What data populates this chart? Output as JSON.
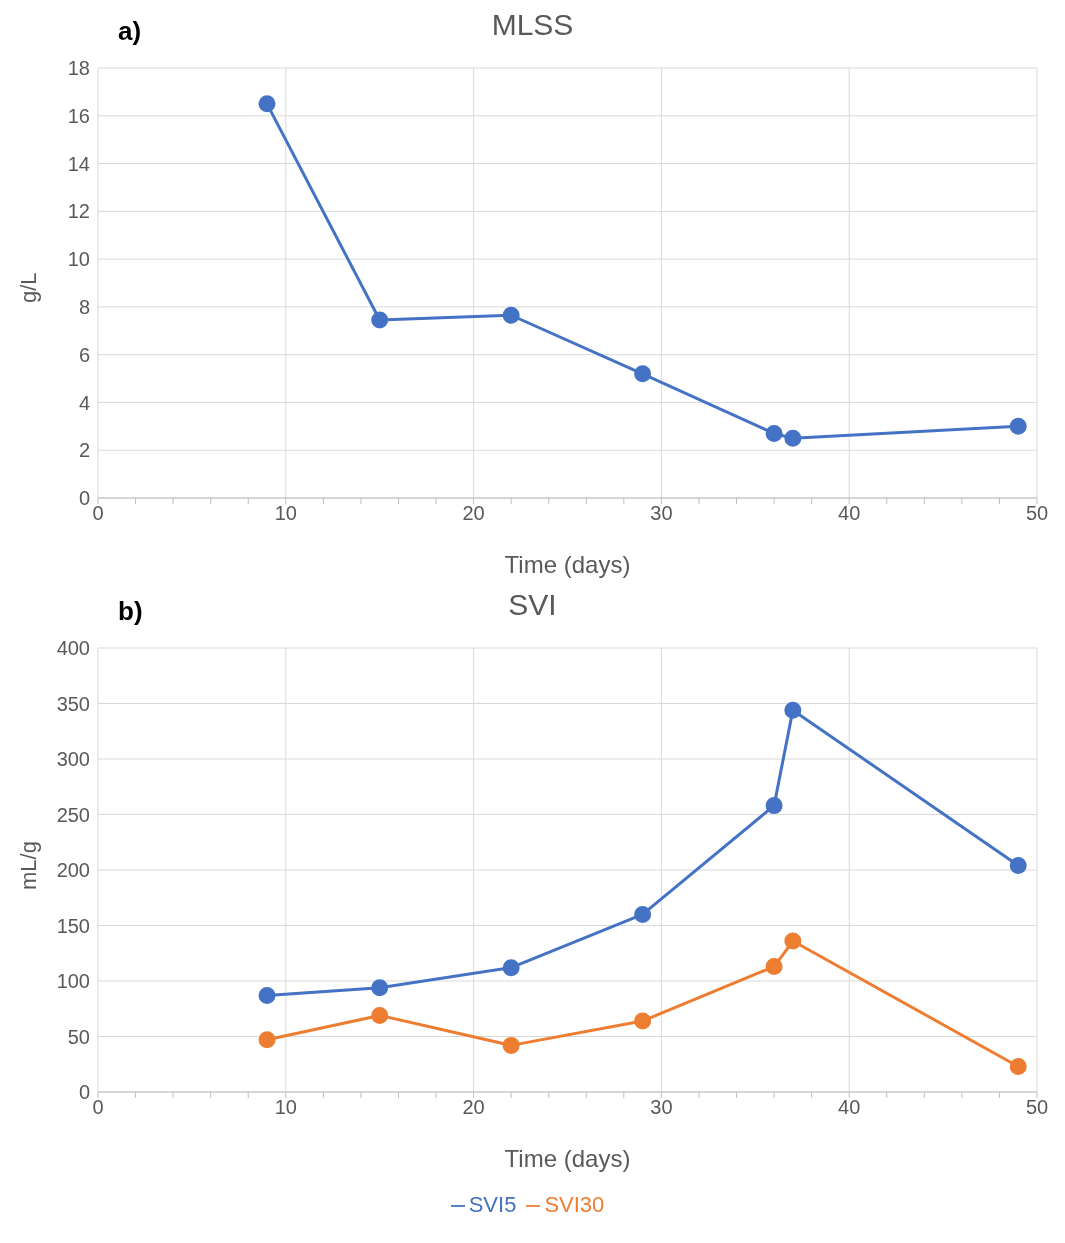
{
  "chart_data": [
    {
      "type": "line",
      "title": "MLSS",
      "xlabel": "Time (days)",
      "ylabel": "g/L",
      "annotations": [
        "a)"
      ],
      "xlim": [
        0,
        50
      ],
      "xticks": [
        0,
        {
          "value": 2,
          "label": null
        },
        {
          "value": 4,
          "label": null
        },
        {
          "value": 6,
          "label": null
        },
        {
          "value": 8,
          "label": null
        },
        10,
        {
          "value": 12,
          "label": null
        },
        {
          "value": 14,
          "label": null
        },
        {
          "value": 16,
          "label": null
        },
        {
          "value": 18,
          "label": null
        },
        20,
        {
          "value": 22,
          "label": null
        },
        {
          "value": 24,
          "label": null
        },
        {
          "value": 26,
          "label": null
        },
        {
          "value": 28,
          "label": null
        },
        30,
        {
          "value": 32,
          "label": null
        },
        {
          "value": 34,
          "label": null
        },
        {
          "value": 36,
          "label": null
        },
        {
          "value": 38,
          "label": null
        },
        40,
        {
          "value": 42,
          "label": null
        },
        {
          "value": 44,
          "label": null
        },
        {
          "value": 46,
          "label": null
        },
        {
          "value": 48,
          "label": null
        },
        50
      ],
      "ylim": [
        0,
        18
      ],
      "yticks": [
        0,
        2,
        4,
        6,
        8,
        10,
        12,
        14,
        16,
        18
      ],
      "grid": true,
      "legend": false,
      "marker": "circle",
      "line_style": "solid",
      "x": [
        9,
        15,
        22,
        29,
        36,
        37,
        49
      ],
      "series": [
        {
          "color": "#4472c4",
          "values": [
            16.5,
            7.45,
            7.65,
            5.2,
            2.7,
            2.5,
            3.0
          ]
        }
      ]
    },
    {
      "type": "line",
      "title": "SVI",
      "xlabel": "Time (days)",
      "ylabel": "mL/g",
      "annotations": [
        "b)"
      ],
      "xlim": [
        0,
        50
      ],
      "xticks": [
        0,
        {
          "value": 2,
          "label": null
        },
        {
          "value": 4,
          "label": null
        },
        {
          "value": 6,
          "label": null
        },
        {
          "value": 8,
          "label": null
        },
        10,
        {
          "value": 12,
          "label": null
        },
        {
          "value": 14,
          "label": null
        },
        {
          "value": 16,
          "label": null
        },
        {
          "value": 18,
          "label": null
        },
        20,
        {
          "value": 22,
          "label": null
        },
        {
          "value": 24,
          "label": null
        },
        {
          "value": 26,
          "label": null
        },
        {
          "value": 28,
          "label": null
        },
        30,
        {
          "value": 32,
          "label": null
        },
        {
          "value": 34,
          "label": null
        },
        {
          "value": 36,
          "label": null
        },
        {
          "value": 38,
          "label": null
        },
        40,
        {
          "value": 42,
          "label": null
        },
        {
          "value": 44,
          "label": null
        },
        {
          "value": 46,
          "label": null
        },
        {
          "value": 48,
          "label": null
        },
        50
      ],
      "ylim": [
        0,
        400
      ],
      "yticks": [
        0,
        50,
        100,
        150,
        200,
        250,
        300,
        350,
        400
      ],
      "grid": true,
      "legend": "bottom",
      "marker": "circle",
      "line_style": "solid",
      "x": [
        9,
        15,
        22,
        29,
        36,
        37,
        49
      ],
      "series": [
        {
          "name": "SVI5",
          "color": "#4472c4",
          "values": [
            87,
            94,
            112,
            160,
            258,
            344,
            204
          ]
        },
        {
          "name": "SVI30",
          "color": "#ed7d31",
          "values": [
            47,
            69,
            42,
            64,
            113,
            136,
            23
          ]
        }
      ]
    }
  ]
}
